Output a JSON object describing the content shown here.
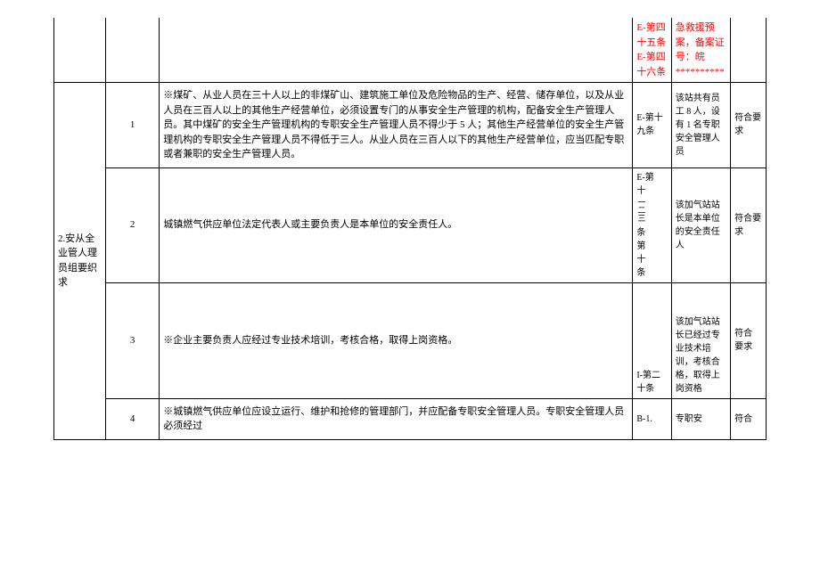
{
  "table": {
    "category_label": "2.安从全业管人理员组要织求",
    "top_row": {
      "ref": "E-第四十五条 E-第四十六条",
      "status": "急救援预案，备案证号：皖**********",
      "ref_color": "#ff0000",
      "status_color": "#ff0000"
    },
    "rows": [
      {
        "num": "1",
        "content": "※煤矿、从业人员在三十人以上的非煤矿山、建筑施工单位及危险物品的生产、经营、储存单位，以及从业人员在三百人以上的其他生产经营单位，必须设置专门的从事安全生产管理的机构，配备安全生产管理人员。其中煤矿的安全生产管理机构的专职安全生产管理人员不得少于 5 人；其他生产经营单位的安全生产管理机构的专职安全生产管理人员不得低于三人。从业人员在三百人以下的其他生产经营单位，应当匹配专职或者兼职的安全生产管理人员。",
        "ref": "E-第十九条",
        "status": "该站共有员工 8 人，设有 1 名专职安全管理人员",
        "result": "符合要求"
      },
      {
        "num": "2",
        "content": "城镇燃气供应单位法定代表人或主要负责人是本单位的安全责任人。",
        "ref": "E-第十\n条第十条",
        "status": "该加气站站长是本单位的安全责任人",
        "result": "符合要求"
      },
      {
        "num": "3",
        "content": "※企业主要负责人应经过专业技术培训，考核合格，取得上岗资格。",
        "ref": "I-第二十条",
        "status": "该加气站站长已经过专业技术培训，考核合格，取得上岗资格",
        "result": "符合 要求"
      },
      {
        "num": "4",
        "content": "※城镇燃气供应单位应设立运行、维护和抢修的管理部门，并应配备专职安全管理人员。专职安全管理人员必须经过",
        "ref": "B-1.",
        "status": "专职安",
        "result": "符合"
      }
    ],
    "styling": {
      "border_color": "#000000",
      "text_color": "#000000",
      "background_color": "#ffffff",
      "font_size_main": 11,
      "font_size_small": 10,
      "font_family": "SimSun"
    }
  }
}
